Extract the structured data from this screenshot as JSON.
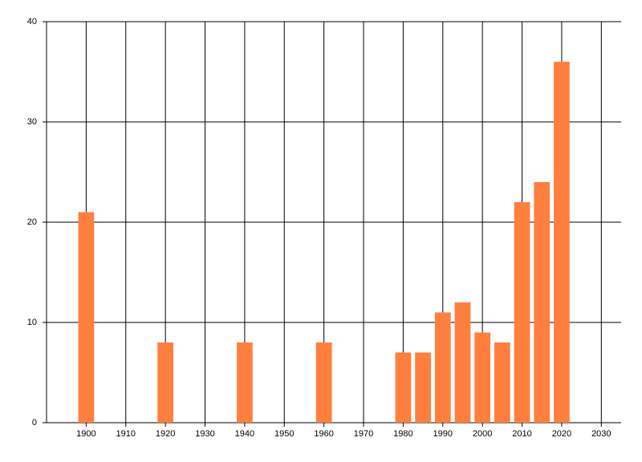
{
  "chart_data": {
    "type": "bar",
    "x": [
      1900,
      1920,
      1940,
      1960,
      1980,
      1985,
      1990,
      1995,
      2000,
      2005,
      2010,
      2015,
      2020
    ],
    "values": [
      21,
      8,
      8,
      8,
      7,
      7,
      11,
      12,
      9,
      8,
      22,
      24,
      36
    ],
    "color": "#ff7f3f",
    "xlim": [
      1890,
      2035
    ],
    "xticks": [
      1900,
      1910,
      1920,
      1930,
      1940,
      1950,
      1960,
      1970,
      1980,
      1990,
      2000,
      2010,
      2020,
      2030
    ],
    "ylim": [
      0,
      40
    ],
    "yticks": [
      0,
      10,
      20,
      30,
      40
    ],
    "grid": true
  }
}
